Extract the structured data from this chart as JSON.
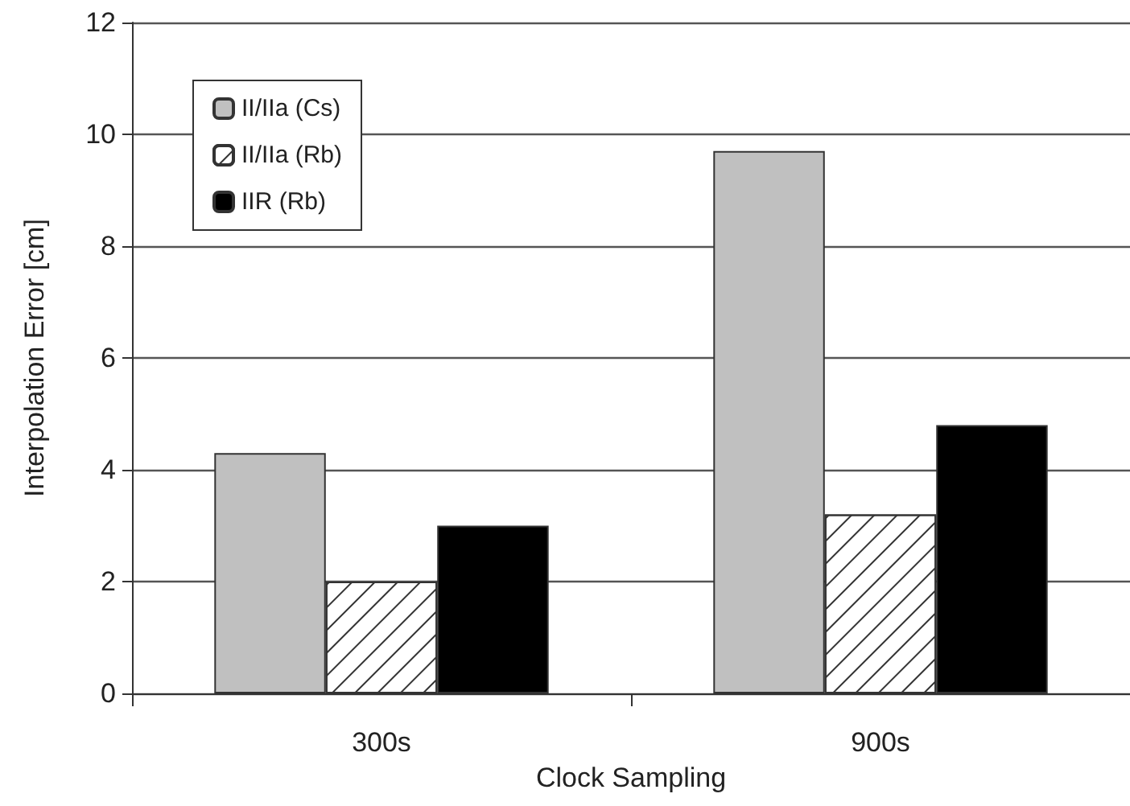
{
  "chart_data": {
    "type": "bar",
    "xlabel": "Clock Sampling",
    "ylabel": "Interpolation Error [cm]",
    "categories": [
      "300s",
      "900s"
    ],
    "series": [
      {
        "name": "II/IIa (Cs)",
        "color": "#c0c0c0",
        "values": [
          4.3,
          9.7
        ]
      },
      {
        "name": "II/IIa (Rb)",
        "color": "#ffffff",
        "values": [
          2.0,
          3.2
        ]
      },
      {
        "name": "IIR (Rb)",
        "color": "#000000",
        "values": [
          3.0,
          4.8
        ]
      }
    ],
    "ylim": [
      0,
      12
    ],
    "yticks": [
      0,
      2,
      4,
      6,
      8,
      10,
      12
    ],
    "grid": "y",
    "legend": "top left"
  }
}
